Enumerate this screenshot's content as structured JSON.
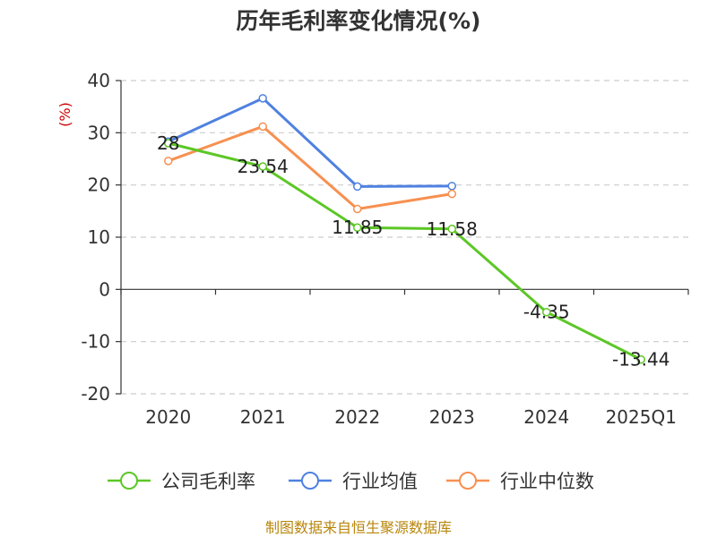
{
  "title": "历年毛利率变化情况(%)",
  "source": "制图数据来自恒生聚源数据库",
  "colors": {
    "company": "#5cc726",
    "avg": "#4f81e0",
    "median": "#f79050",
    "unit": "#cc0000",
    "source": "#b8860b"
  },
  "chart_data": {
    "type": "line",
    "title": "历年毛利率变化情况(%)",
    "ylabel": "(%)",
    "categories": [
      "2020",
      "2021",
      "2022",
      "2023",
      "2024",
      "2025Q1"
    ],
    "ylim": [
      -20,
      40
    ],
    "yticks": [
      "40",
      "30",
      "20",
      "10",
      "0",
      "-10",
      "-20"
    ],
    "grid": true,
    "legend_position": "bottom",
    "series": [
      {
        "name": "公司毛利率",
        "color": "#5cc726",
        "values": [
          28,
          23.54,
          11.85,
          11.58,
          -4.35,
          -13.44
        ],
        "labels": [
          "28",
          "23.54",
          "11.85",
          "11.58",
          "-4.35",
          "-13.44"
        ]
      },
      {
        "name": "行业均值",
        "color": "#4f81e0",
        "values": [
          28.3,
          36.6,
          19.7,
          19.8,
          null,
          null
        ]
      },
      {
        "name": "行业中位数",
        "color": "#f79050",
        "values": [
          24.6,
          31.2,
          15.4,
          18.3,
          null,
          null
        ]
      }
    ]
  }
}
